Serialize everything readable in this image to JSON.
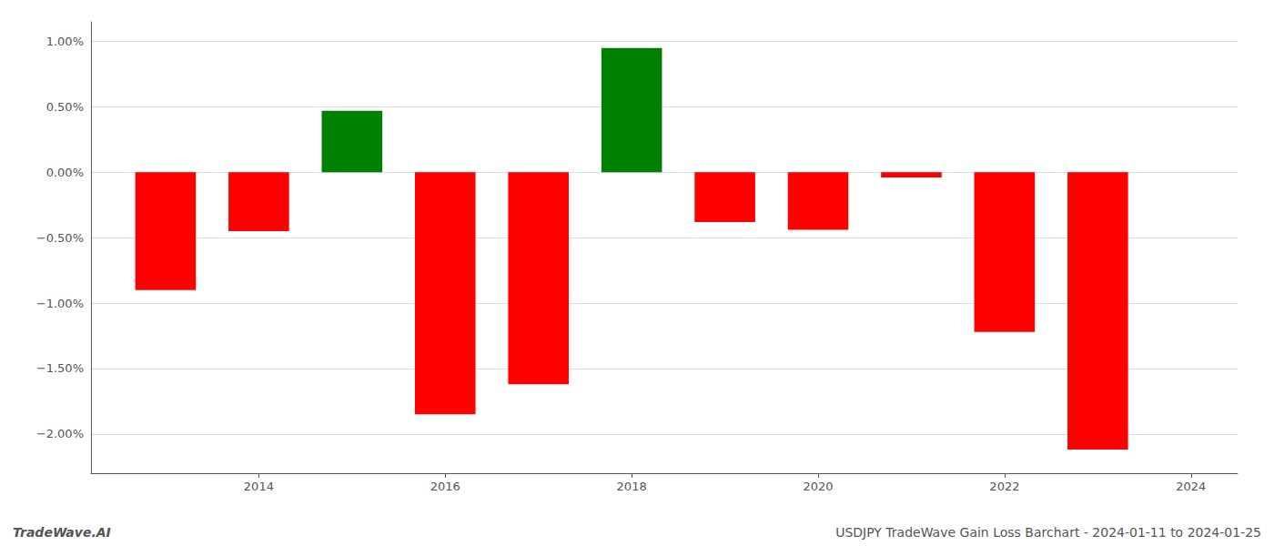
{
  "chart_data": {
    "type": "bar",
    "x": [
      2013,
      2014,
      2015,
      2016,
      2017,
      2018,
      2019,
      2020,
      2021,
      2022,
      2023
    ],
    "values": [
      -0.9,
      -0.45,
      0.47,
      -1.85,
      -1.62,
      0.95,
      -0.38,
      -0.44,
      -0.04,
      -1.22,
      -2.12
    ],
    "colors": [
      "#ff0000",
      "#ff0000",
      "#008000",
      "#ff0000",
      "#ff0000",
      "#008000",
      "#ff0000",
      "#ff0000",
      "#ff0000",
      "#ff0000",
      "#ff0000"
    ],
    "xlim": [
      2012.2,
      2024.5
    ],
    "xticks": [
      2014,
      2016,
      2018,
      2020,
      2022,
      2024
    ],
    "ylim": [
      -2.3,
      1.15
    ],
    "yticks": [
      {
        "value": -2.0,
        "label": "−2.00%"
      },
      {
        "value": -1.5,
        "label": "−1.50%"
      },
      {
        "value": -1.0,
        "label": "−1.00%"
      },
      {
        "value": -0.5,
        "label": "−0.50%"
      },
      {
        "value": 0.0,
        "label": "0.00%"
      },
      {
        "value": 0.5,
        "label": "0.50%"
      },
      {
        "value": 1.0,
        "label": "1.00%"
      }
    ],
    "grid": true,
    "annotations": [
      "TradeWave.AI",
      "USDJPY TradeWave Gain Loss Barchart - 2024-01-11 to 2024-01-25"
    ]
  }
}
